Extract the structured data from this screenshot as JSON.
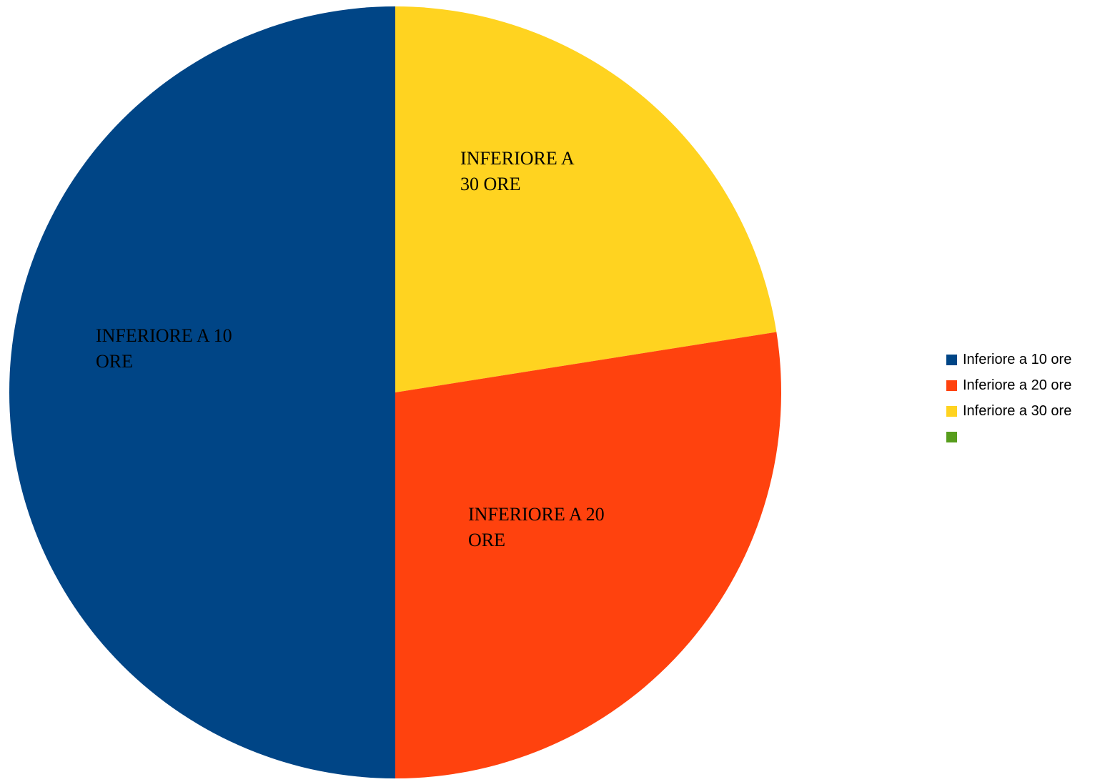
{
  "chart_data": {
    "type": "pie",
    "title": "",
    "start_angle_deg": 0,
    "direction": "clockwise",
    "slices": [
      {
        "name": "Inferiore a 30 ore",
        "label": "INFERIORE A 30 ORE",
        "value": 22.5,
        "color": "#FFD320"
      },
      {
        "name": "Inferiore a 20 ore",
        "label": "INFERIORE A 20 ORE",
        "value": 27.5,
        "color": "#FF420E"
      },
      {
        "name": "Inferiore a 10 ore",
        "label": "INFERIORE A 10 ORE",
        "value": 50,
        "color": "#004586"
      }
    ],
    "legend": {
      "position": "right",
      "items": [
        {
          "label": "Inferiore a 10 ore",
          "color": "#004586"
        },
        {
          "label": "Inferiore a 20 ore",
          "color": "#FF420E"
        },
        {
          "label": "Inferiore a 30 ore",
          "color": "#FFD320"
        },
        {
          "label": "",
          "color": "#579D1C"
        }
      ]
    }
  }
}
